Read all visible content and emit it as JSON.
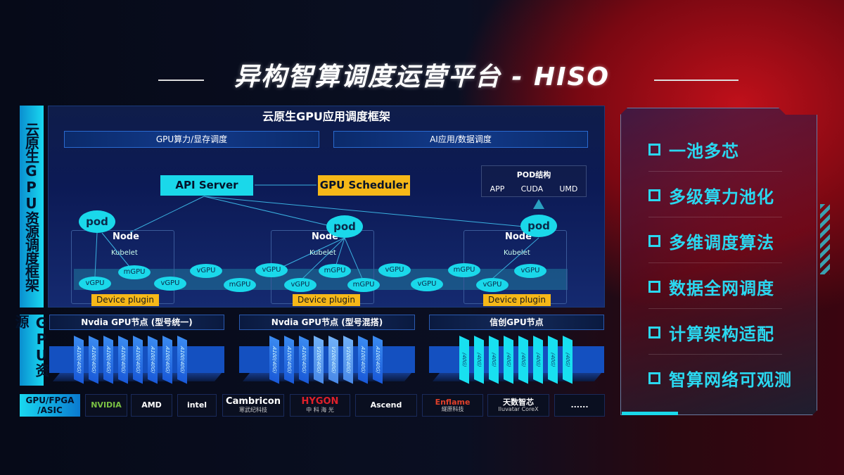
{
  "title": "异构智算调度运营平台 - HISO",
  "side_labels": {
    "framework": "云原生GPU资源调度框架",
    "resources": "GPU资源"
  },
  "framework": {
    "title": "云原生GPU应用调度框架",
    "sub": [
      "GPU算力/显存调度",
      "AI应用/数据调度"
    ]
  },
  "diagram": {
    "api_server": "API Server",
    "gpu_scheduler": "GPU Scheduler",
    "pod_structure": {
      "title": "POD结构",
      "items": [
        "APP",
        "CUDA",
        "UMD"
      ]
    },
    "pod": "pod",
    "node": "Node",
    "kubelet": "Kubelet",
    "device_plugin": "Device plugin",
    "gpus": [
      "vGPU",
      "mGPU",
      "vGPU",
      "vGPU",
      "mGPU",
      "vGPU",
      "vGPU",
      "mGPU",
      "mGPU",
      "vGPU",
      "vGPU",
      "mGPU",
      "vGPU",
      "vGPU"
    ]
  },
  "gpu_nodes": [
    {
      "title": "Nvdia GPU节点 (型号统一)",
      "chips": [
        "A100(40G)",
        "A100(40G)",
        "A100(40G)",
        "A100(40G)",
        "A100(40G)",
        "A100(40G)",
        "A100(40G)",
        "A100(40G)"
      ]
    },
    {
      "title": "Nvdia GPU节点 (型号混搭)",
      "chips": [
        "A100(40G)",
        "A100(40G)",
        "A100(40G)",
        "V100(40G)",
        "V100(40G)",
        "V100(40G)",
        "A100(40G)",
        "A100(40G)"
      ]
    },
    {
      "title": "信创GPU节点",
      "chips": [
        "(40G)",
        "(40G)",
        "(40G)",
        "(40G)",
        "(40G)",
        "(40G)",
        "(40G)",
        "(40G)"
      ]
    }
  ],
  "vendors": {
    "label": "GPU/FPGA /ASIC",
    "items": [
      {
        "name": "NVIDIA",
        "sub": ""
      },
      {
        "name": "AMD",
        "sub": ""
      },
      {
        "name": "intel",
        "sub": ""
      },
      {
        "name": "Cambricon",
        "sub": "寒武纪科技"
      },
      {
        "name": "HYGON",
        "sub": "中 科 海 光"
      },
      {
        "name": "Ascend",
        "sub": ""
      },
      {
        "name": "Enflame",
        "sub": "燧原科技"
      },
      {
        "name": "天数智芯",
        "sub": "Iluvatar CoreX"
      },
      {
        "name": "......",
        "sub": ""
      }
    ]
  },
  "features": [
    "一池多芯",
    "多级算力池化",
    "多维调度算法",
    "数据全网调度",
    "计算架构适配",
    "智算网络可观测"
  ],
  "colors": {
    "cyan": "#1ad8ea",
    "yellow": "#f6b818",
    "blue": "#1450c0",
    "red": "#c0101a"
  }
}
